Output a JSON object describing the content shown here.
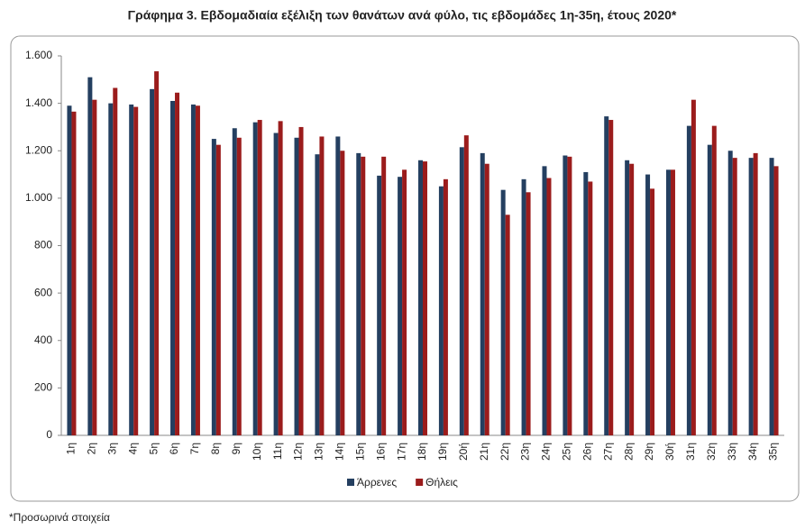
{
  "chart_data": {
    "type": "bar",
    "title": "Γράφημα 3. Εβδομαδιαία εξέλιξη των θανάτων ανά φύλο, τις εβδομάδες 1η-35η, έτους 2020*",
    "footnote": "*Προσωρινά στοιχεία",
    "categories": [
      "1η",
      "2η",
      "3η",
      "4η",
      "5η",
      "6η",
      "7η",
      "8η",
      "9η",
      "10η",
      "11η",
      "12η",
      "13η",
      "14η",
      "15η",
      "16η",
      "17η",
      "18η",
      "19η",
      "20ή",
      "21η",
      "22η",
      "23η",
      "24η",
      "25η",
      "26η",
      "27η",
      "28η",
      "29η",
      "30ή",
      "31η",
      "32η",
      "33η",
      "34η",
      "35η"
    ],
    "series": [
      {
        "name": "Άρρενες",
        "color": "#243f60",
        "values": [
          1390,
          1510,
          1400,
          1395,
          1460,
          1410,
          1395,
          1250,
          1295,
          1320,
          1275,
          1255,
          1185,
          1260,
          1190,
          1095,
          1090,
          1160,
          1050,
          1215,
          1190,
          1035,
          1080,
          1135,
          1180,
          1110,
          1345,
          1160,
          1100,
          1120,
          1305,
          1225,
          1200,
          1170,
          1170
        ]
      },
      {
        "name": "Θήλεις",
        "color": "#9b1c1c",
        "values": [
          1365,
          1415,
          1465,
          1385,
          1535,
          1445,
          1390,
          1225,
          1255,
          1330,
          1325,
          1300,
          1260,
          1200,
          1175,
          1175,
          1120,
          1155,
          1080,
          1265,
          1145,
          930,
          1025,
          1085,
          1175,
          1070,
          1330,
          1145,
          1040,
          1120,
          1415,
          1305,
          1170,
          1190,
          1135
        ]
      }
    ],
    "ylim": [
      0,
      1600
    ],
    "yticks": [
      0,
      200,
      400,
      600,
      800,
      {
        "value": 1000,
        "label": "1.000"
      },
      {
        "value": 1200,
        "label": "1.200"
      },
      {
        "value": 1400,
        "label": "1.400"
      },
      {
        "value": 1600,
        "label": "1.600"
      }
    ],
    "grid": false,
    "legend": "bottom"
  }
}
